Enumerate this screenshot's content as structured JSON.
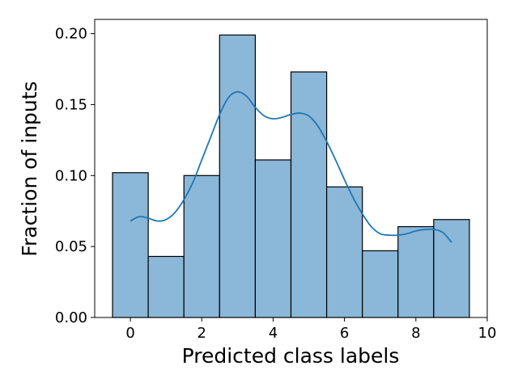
{
  "chart_data": {
    "type": "bar",
    "subtype": "histogram-with-kde",
    "title": "",
    "xlabel": "Predicted class labels",
    "ylabel": "Fraction of inputs",
    "xlim": [
      -1,
      10
    ],
    "ylim": [
      0,
      0.21
    ],
    "xticks": [
      0,
      2,
      4,
      6,
      8,
      10
    ],
    "xtick_labels": [
      "0",
      "2",
      "4",
      "6",
      "8",
      "10"
    ],
    "yticks": [
      0.0,
      0.05,
      0.1,
      0.15,
      0.2
    ],
    "ytick_labels": [
      "0.00",
      "0.05",
      "0.10",
      "0.15",
      "0.20"
    ],
    "categories": [
      "0",
      "1",
      "2",
      "3",
      "4",
      "5",
      "6",
      "7",
      "8",
      "9"
    ],
    "bins": [
      {
        "x0": -0.5,
        "x1": 0.5,
        "value": 0.102
      },
      {
        "x0": 0.5,
        "x1": 1.5,
        "value": 0.043
      },
      {
        "x0": 1.5,
        "x1": 2.5,
        "value": 0.1
      },
      {
        "x0": 2.5,
        "x1": 3.5,
        "value": 0.199
      },
      {
        "x0": 3.5,
        "x1": 4.5,
        "value": 0.111
      },
      {
        "x0": 4.5,
        "x1": 5.5,
        "value": 0.173
      },
      {
        "x0": 5.5,
        "x1": 6.5,
        "value": 0.092
      },
      {
        "x0": 6.5,
        "x1": 7.5,
        "value": 0.047
      },
      {
        "x0": 7.5,
        "x1": 8.5,
        "value": 0.064
      },
      {
        "x0": 8.5,
        "x1": 9.5,
        "value": 0.069
      }
    ],
    "kde": {
      "x": [
        0,
        0.25,
        0.5,
        0.75,
        1,
        1.25,
        1.5,
        1.75,
        2,
        2.25,
        2.5,
        2.75,
        3,
        3.25,
        3.5,
        3.75,
        4,
        4.25,
        4.5,
        4.75,
        5,
        5.25,
        5.5,
        5.75,
        6,
        6.25,
        6.5,
        6.75,
        7,
        7.25,
        7.5,
        7.75,
        8,
        8.25,
        8.5,
        8.75,
        9
      ],
      "y": [
        0.068,
        0.071,
        0.07,
        0.068,
        0.069,
        0.074,
        0.083,
        0.095,
        0.111,
        0.127,
        0.143,
        0.155,
        0.159,
        0.156,
        0.148,
        0.142,
        0.14,
        0.141,
        0.143,
        0.144,
        0.142,
        0.135,
        0.124,
        0.111,
        0.097,
        0.084,
        0.073,
        0.064,
        0.059,
        0.058,
        0.058,
        0.059,
        0.061,
        0.062,
        0.062,
        0.06,
        0.053
      ]
    },
    "grid": false,
    "legend": "none",
    "colors": {
      "bar_fill": "#8bb7d8",
      "bar_edge": "#000000",
      "kde_line": "#1f77b4",
      "axes": "#000000"
    }
  }
}
